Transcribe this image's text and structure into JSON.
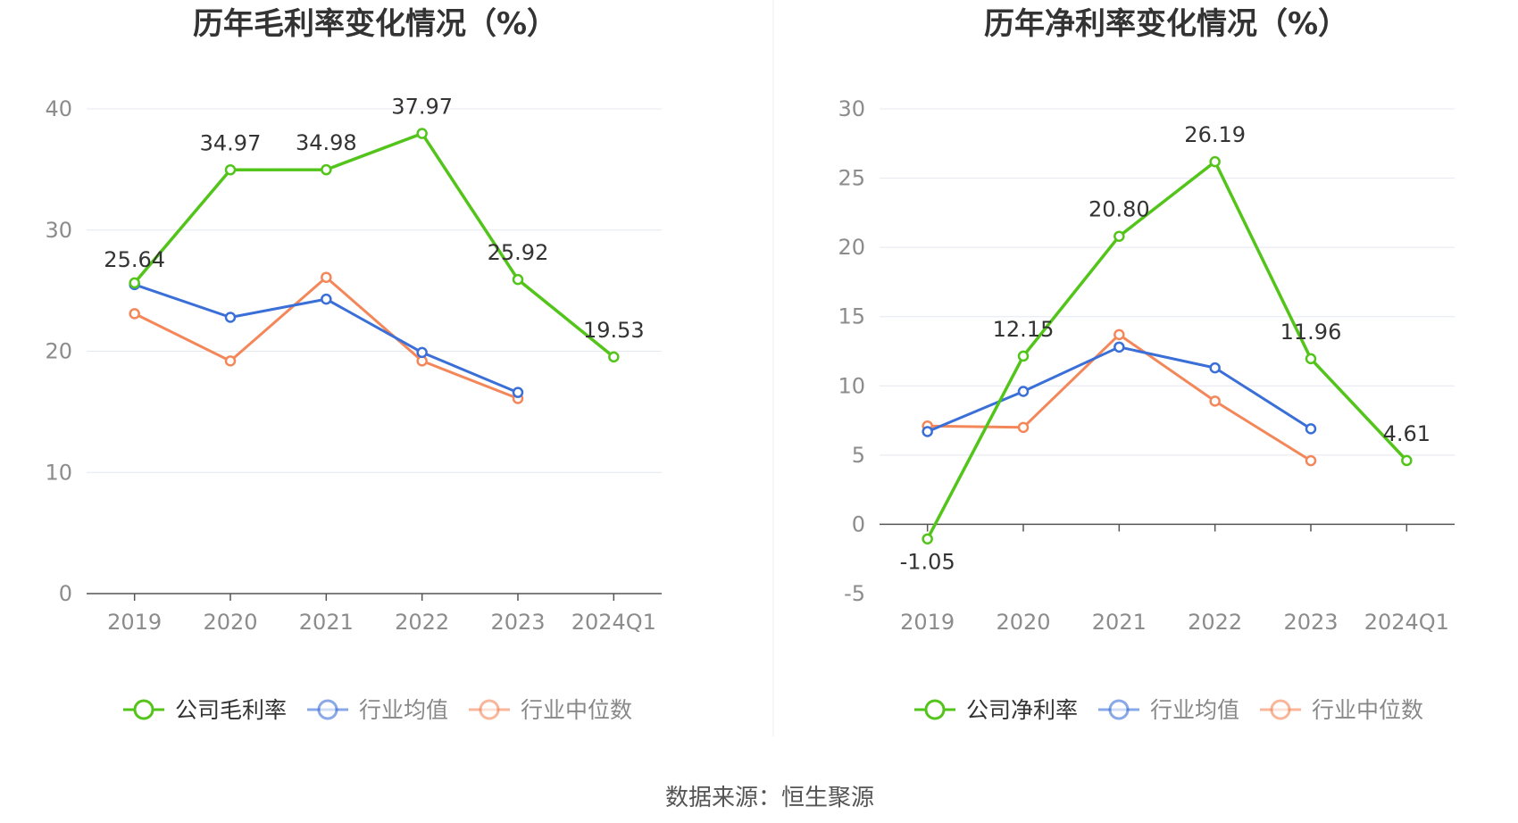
{
  "source": "数据来源：恒生聚源",
  "colors": {
    "company": "#52c41a",
    "industry_avg": "#3a6fd8",
    "industry_median": "#f4875a",
    "grid": "#e4e8f1",
    "axis": "#555555",
    "legend_inactive_text": "#888888"
  },
  "chart_data": [
    {
      "type": "line",
      "title": "历年毛利率变化情况（%）",
      "categories": [
        "2019",
        "2020",
        "2021",
        "2022",
        "2023",
        "2024Q1"
      ],
      "ylim": [
        0,
        40
      ],
      "yticks": [
        "0",
        "10",
        "20",
        "30",
        "40"
      ],
      "grid": true,
      "legend_position": "bottom",
      "series": [
        {
          "name": "公司毛利率",
          "key": "company",
          "values": [
            25.64,
            34.97,
            34.98,
            37.97,
            25.92,
            19.53
          ],
          "labels": [
            "25.64",
            "34.97",
            "34.98",
            "37.97",
            "25.92",
            "19.53"
          ]
        },
        {
          "name": "行业均值",
          "key": "industry_avg",
          "values": [
            25.5,
            22.8,
            24.3,
            19.9,
            16.6,
            null
          ]
        },
        {
          "name": "行业中位数",
          "key": "industry_median",
          "values": [
            23.1,
            19.2,
            26.1,
            19.2,
            16.1,
            null
          ]
        }
      ]
    },
    {
      "type": "line",
      "title": "历年净利率变化情况（%）",
      "categories": [
        "2019",
        "2020",
        "2021",
        "2022",
        "2023",
        "2024Q1"
      ],
      "ylim": [
        -5,
        30
      ],
      "yticks": [
        "-5",
        "0",
        "5",
        "10",
        "15",
        "20",
        "25",
        "30"
      ],
      "grid": true,
      "legend_position": "bottom",
      "series": [
        {
          "name": "公司净利率",
          "key": "company",
          "values": [
            -1.05,
            12.15,
            20.8,
            26.19,
            11.96,
            4.61
          ],
          "labels": [
            "-1.05",
            "12.15",
            "20.80",
            "26.19",
            "11.96",
            "4.61"
          ]
        },
        {
          "name": "行业均值",
          "key": "industry_avg",
          "values": [
            6.7,
            9.6,
            12.8,
            11.3,
            6.9,
            null
          ]
        },
        {
          "name": "行业中位数",
          "key": "industry_median",
          "values": [
            7.1,
            7.0,
            13.7,
            8.9,
            4.6,
            null
          ]
        }
      ]
    }
  ]
}
